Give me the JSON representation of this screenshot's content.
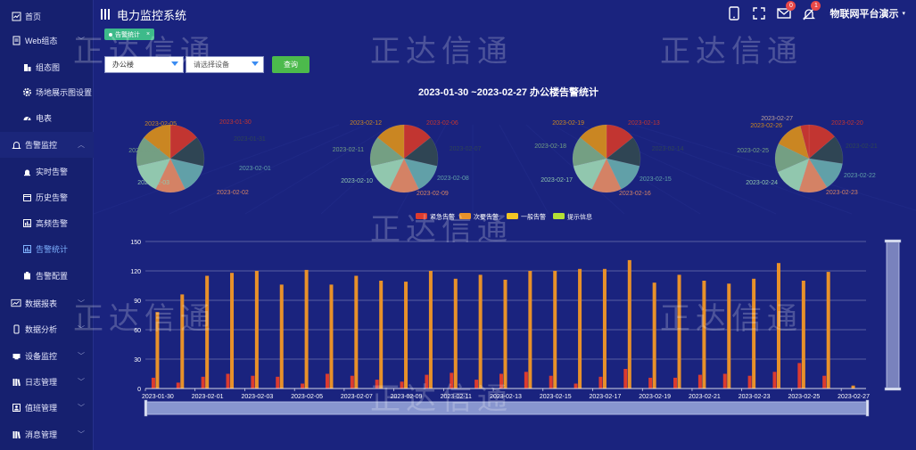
{
  "app_title": "电力监控系统",
  "user_name": "物联网平台演示",
  "header_badges": {
    "mail": "0",
    "bell": "1"
  },
  "sidebar": {
    "items": [
      {
        "label": "首页",
        "icon": "home-icon",
        "kind": "top"
      },
      {
        "label": "Web组态",
        "icon": "document-icon",
        "kind": "top",
        "caret": true
      },
      {
        "label": "组态图",
        "icon": "building-icon",
        "kind": "sub"
      },
      {
        "label": "场地展示图设置",
        "icon": "gear-icon",
        "kind": "sub"
      },
      {
        "label": "电表",
        "icon": "meter-icon",
        "kind": "sub"
      },
      {
        "label": "告警监控",
        "icon": "bell-icon",
        "kind": "top",
        "caret": true,
        "open": true
      },
      {
        "label": "实时告警",
        "icon": "siren-icon",
        "kind": "sub"
      },
      {
        "label": "历史告警",
        "icon": "calendar-icon",
        "kind": "sub"
      },
      {
        "label": "高频告警",
        "icon": "stats-icon",
        "kind": "sub"
      },
      {
        "label": "告警统计",
        "icon": "chart-icon",
        "kind": "sub",
        "active": true
      },
      {
        "label": "告警配置",
        "icon": "config-icon",
        "kind": "sub"
      },
      {
        "label": "数据报表",
        "icon": "report-icon",
        "kind": "top",
        "caret": true
      },
      {
        "label": "数据分析",
        "icon": "phone-icon",
        "kind": "top",
        "caret": true
      },
      {
        "label": "设备监控",
        "icon": "device-icon",
        "kind": "top",
        "caret": true
      },
      {
        "label": "日志管理",
        "icon": "books-icon",
        "kind": "top",
        "caret": true
      },
      {
        "label": "值班管理",
        "icon": "duty-icon",
        "kind": "top",
        "caret": true
      },
      {
        "label": "消息管理",
        "icon": "books-icon",
        "kind": "top",
        "caret": true
      }
    ]
  },
  "tab": {
    "label": "告警统计",
    "close": "×"
  },
  "filters": {
    "building": "办公楼",
    "device_placeholder": "请选择设备",
    "query_label": "查询"
  },
  "watermark_text": "正达信通",
  "colors": {
    "background": "#1a237e",
    "urgent": "#dd3b2e",
    "secondary": "#e8912a",
    "general": "#f2c624",
    "info": "#b4e034",
    "pie_palette": [
      "#c23531",
      "#2f4554",
      "#61a0a8",
      "#d48265",
      "#91c7ae",
      "#749f83",
      "#ca8622"
    ]
  },
  "chart_data": {
    "title": "2023-01-30 ~2023-02-27 办公楼告警统计",
    "legend": [
      "紧急告警",
      "次要告警",
      "一般告警",
      "提示信息"
    ],
    "legend_position": "top-center",
    "bar": {
      "type": "bar",
      "categories": [
        "2023-01-30",
        "2023-01-31",
        "2023-02-01",
        "2023-02-02",
        "2023-02-03",
        "2023-02-04",
        "2023-02-05",
        "2023-02-06",
        "2023-02-07",
        "2023-02-08",
        "2023-02-09",
        "2023-02-10",
        "2023-02-11",
        "2023-02-12",
        "2023-02-13",
        "2023-02-14",
        "2023-02-15",
        "2023-02-16",
        "2023-02-17",
        "2023-02-18",
        "2023-02-19",
        "2023-02-20",
        "2023-02-21",
        "2023-02-22",
        "2023-02-23",
        "2023-02-24",
        "2023-02-25",
        "2023-02-26",
        "2023-02-27"
      ],
      "x_tick_labels": [
        "2023-01-30",
        "2023-02-01",
        "2023-02-03",
        "2023-02-05",
        "2023-02-07",
        "2023-02-09",
        "2023-02-11",
        "2023-02-13",
        "2023-02-15",
        "2023-02-17",
        "2023-02-19",
        "2023-02-21",
        "2023-02-23",
        "2023-02-25",
        "2023-02-27"
      ],
      "series": [
        {
          "name": "紧急告警",
          "values": [
            11,
            6,
            12,
            15,
            13,
            12,
            5,
            15,
            13,
            9,
            7,
            14,
            16,
            9,
            15,
            17,
            13,
            5,
            12,
            20,
            11,
            11,
            14,
            15,
            13,
            17,
            26,
            13,
            0
          ]
        },
        {
          "name": "次要告警",
          "values": [
            78,
            96,
            115,
            118,
            120,
            106,
            121,
            106,
            115,
            110,
            109,
            120,
            112,
            116,
            111,
            120,
            120,
            122,
            122,
            131,
            108,
            116,
            110,
            107,
            112,
            128,
            110,
            119,
            3
          ]
        },
        {
          "name": "一般告警",
          "values": [
            0,
            0,
            0,
            0,
            0,
            0,
            0,
            0,
            0,
            0,
            0,
            0,
            0,
            0,
            0,
            0,
            0,
            0,
            0,
            0,
            0,
            0,
            0,
            0,
            0,
            0,
            0,
            0,
            0
          ]
        },
        {
          "name": "提示信息",
          "values": [
            0,
            0,
            0,
            0,
            0,
            0,
            0,
            0,
            0,
            0,
            0,
            0,
            0,
            0,
            0,
            0,
            0,
            0,
            0,
            0,
            0,
            0,
            0,
            0,
            0,
            0,
            0,
            0,
            0
          ]
        }
      ],
      "yticks": [
        0,
        30,
        60,
        90,
        120,
        150
      ],
      "ylim": [
        0,
        150
      ],
      "grid": true
    },
    "pies": [
      {
        "type": "pie",
        "labels": [
          "2023-01-30",
          "2023-01-31",
          "2023-02-01",
          "2023-02-02",
          "2023-02-03",
          "2023-02-04",
          "2023-02-05"
        ],
        "values": [
          1,
          1,
          1,
          1,
          1,
          1,
          1
        ]
      },
      {
        "type": "pie",
        "labels": [
          "2023-02-06",
          "2023-02-07",
          "2023-02-08",
          "2023-02-09",
          "2023-02-10",
          "2023-02-11",
          "2023-02-12"
        ],
        "values": [
          1,
          1,
          1,
          1,
          1,
          1,
          1
        ]
      },
      {
        "type": "pie",
        "labels": [
          "2023-02-13",
          "2023-02-14",
          "2023-02-15",
          "2023-02-16",
          "2023-02-17",
          "2023-02-18",
          "2023-02-19"
        ],
        "values": [
          1,
          1,
          1,
          1,
          1,
          1,
          1
        ]
      },
      {
        "type": "pie",
        "labels": [
          "2023-02-20",
          "2023-02-21",
          "2023-02-22",
          "2023-02-23",
          "2023-02-24",
          "2023-02-25",
          "2023-02-26",
          "2023-02-27"
        ],
        "values": [
          1,
          1,
          1,
          1,
          1,
          1,
          1,
          0.3
        ]
      }
    ]
  }
}
